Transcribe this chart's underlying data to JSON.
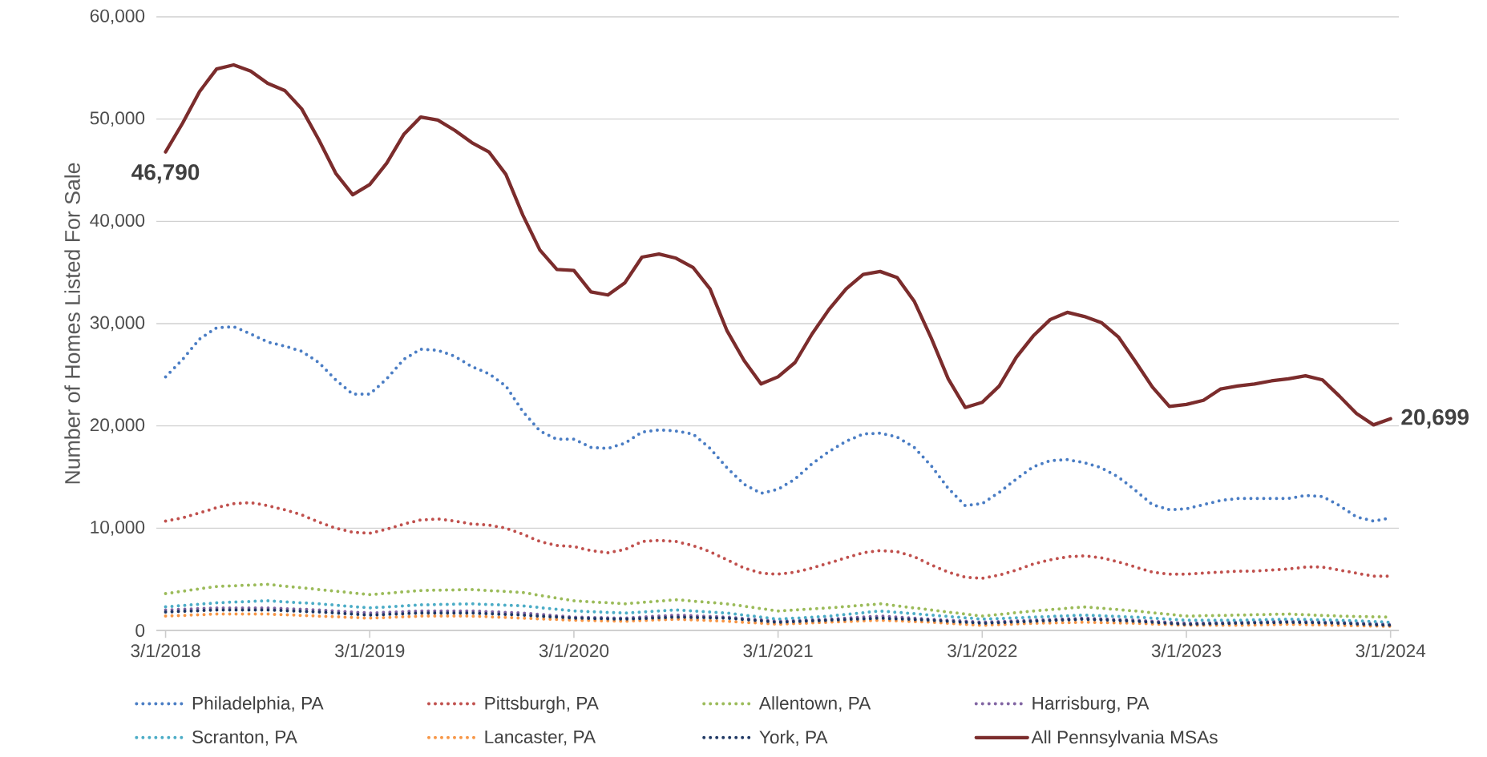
{
  "chart_data": {
    "type": "line",
    "ylabel": "Number of Homes Listed For Sale",
    "x": [
      "2018-03",
      "2018-04",
      "2018-05",
      "2018-06",
      "2018-07",
      "2018-08",
      "2018-09",
      "2018-10",
      "2018-11",
      "2018-12",
      "2019-01",
      "2019-02",
      "2019-03",
      "2019-04",
      "2019-05",
      "2019-06",
      "2019-07",
      "2019-08",
      "2019-09",
      "2019-10",
      "2019-11",
      "2019-12",
      "2020-01",
      "2020-02",
      "2020-03",
      "2020-04",
      "2020-05",
      "2020-06",
      "2020-07",
      "2020-08",
      "2020-09",
      "2020-10",
      "2020-11",
      "2020-12",
      "2021-01",
      "2021-02",
      "2021-03",
      "2021-04",
      "2021-05",
      "2021-06",
      "2021-07",
      "2021-08",
      "2021-09",
      "2021-10",
      "2021-11",
      "2021-12",
      "2022-01",
      "2022-02",
      "2022-03",
      "2022-04",
      "2022-05",
      "2022-06",
      "2022-07",
      "2022-08",
      "2022-09",
      "2022-10",
      "2022-11",
      "2022-12",
      "2023-01",
      "2023-02",
      "2023-03",
      "2023-04",
      "2023-05",
      "2023-06",
      "2023-07",
      "2023-08",
      "2023-09",
      "2023-10",
      "2023-11",
      "2023-12",
      "2024-01",
      "2024-02",
      "2024-03"
    ],
    "series": [
      {
        "name": "Philadelphia, PA",
        "color": "#4a7dc4",
        "line_style": "dotted",
        "values": [
          24800,
          26500,
          28500,
          29600,
          29700,
          29000,
          28200,
          27800,
          27300,
          26200,
          24500,
          23100,
          23100,
          24600,
          26500,
          27500,
          27400,
          26800,
          25800,
          25100,
          23900,
          21400,
          19500,
          18700,
          18700,
          17900,
          17800,
          18300,
          19400,
          19600,
          19500,
          19200,
          17800,
          15900,
          14300,
          13400,
          13800,
          14800,
          16300,
          17500,
          18500,
          19200,
          19300,
          18900,
          17900,
          16100,
          13900,
          12200,
          12400,
          13500,
          14800,
          16000,
          16600,
          16700,
          16400,
          15900,
          15000,
          13700,
          12300,
          11800,
          11900,
          12300,
          12700,
          12900,
          12900,
          12900,
          12900,
          13200,
          13100,
          12200,
          11100,
          10700,
          11000
        ]
      },
      {
        "name": "Pittsburgh, PA",
        "color": "#c0504d",
        "line_style": "dotted",
        "values": [
          10700,
          11000,
          11500,
          12000,
          12400,
          12500,
          12200,
          11800,
          11300,
          10600,
          10000,
          9600,
          9500,
          9900,
          10400,
          10800,
          10900,
          10700,
          10400,
          10300,
          10000,
          9400,
          8700,
          8300,
          8200,
          7800,
          7600,
          7900,
          8700,
          8800,
          8700,
          8300,
          7700,
          6900,
          6100,
          5600,
          5500,
          5700,
          6100,
          6600,
          7100,
          7600,
          7800,
          7700,
          7200,
          6400,
          5700,
          5200,
          5100,
          5400,
          5900,
          6500,
          6900,
          7200,
          7300,
          7100,
          6700,
          6200,
          5700,
          5500,
          5500,
          5600,
          5700,
          5800,
          5800,
          5900,
          6000,
          6200,
          6200,
          5900,
          5600,
          5300,
          5300
        ]
      },
      {
        "name": "Allentown, PA",
        "color": "#9bbb59",
        "line_style": "dotted",
        "x": [
          "2018-03",
          "2018-06",
          "2018-09",
          "2018-12",
          "2019-03",
          "2019-06",
          "2019-09",
          "2019-12",
          "2020-03",
          "2020-06",
          "2020-09",
          "2020-12",
          "2021-03",
          "2021-06",
          "2021-09",
          "2021-12",
          "2022-03",
          "2022-06",
          "2022-09",
          "2022-12",
          "2023-03",
          "2023-06",
          "2023-09",
          "2023-12",
          "2024-03"
        ],
        "values": [
          3600,
          4300,
          4500,
          4000,
          3500,
          3900,
          4000,
          3700,
          2900,
          2600,
          3000,
          2600,
          1900,
          2200,
          2600,
          2000,
          1400,
          1900,
          2300,
          1900,
          1400,
          1500,
          1600,
          1400,
          1300
        ]
      },
      {
        "name": "Harrisburg, PA",
        "color": "#8064a2",
        "line_style": "dotted",
        "x": [
          "2018-03",
          "2018-06",
          "2018-09",
          "2018-12",
          "2019-03",
          "2019-06",
          "2019-09",
          "2019-12",
          "2020-03",
          "2020-06",
          "2020-09",
          "2020-12",
          "2021-03",
          "2021-06",
          "2021-09",
          "2021-12",
          "2022-03",
          "2022-06",
          "2022-09",
          "2022-12",
          "2023-03",
          "2023-06",
          "2023-09",
          "2023-12",
          "2024-03"
        ],
        "values": [
          2000,
          2200,
          2200,
          2000,
          1700,
          1900,
          1900,
          1700,
          1300,
          1200,
          1500,
          1300,
          900,
          1100,
          1400,
          1100,
          800,
          1000,
          1200,
          1000,
          700,
          800,
          900,
          800,
          600
        ]
      },
      {
        "name": "Scranton, PA",
        "color": "#4bacc6",
        "line_style": "dotted",
        "x": [
          "2018-03",
          "2018-06",
          "2018-09",
          "2018-12",
          "2019-03",
          "2019-06",
          "2019-09",
          "2019-12",
          "2020-03",
          "2020-06",
          "2020-09",
          "2020-12",
          "2021-03",
          "2021-06",
          "2021-09",
          "2021-12",
          "2022-03",
          "2022-06",
          "2022-09",
          "2022-12",
          "2023-03",
          "2023-06",
          "2023-09",
          "2023-12",
          "2024-03"
        ],
        "values": [
          2300,
          2700,
          2900,
          2600,
          2200,
          2500,
          2600,
          2400,
          1900,
          1700,
          2000,
          1700,
          1100,
          1400,
          1900,
          1500,
          1100,
          1300,
          1500,
          1300,
          1000,
          1000,
          1100,
          1000,
          800
        ]
      },
      {
        "name": "Lancaster, PA",
        "color": "#f79646",
        "line_style": "dotted",
        "x": [
          "2018-03",
          "2018-06",
          "2018-09",
          "2018-12",
          "2019-03",
          "2019-06",
          "2019-09",
          "2019-12",
          "2020-03",
          "2020-06",
          "2020-09",
          "2020-12",
          "2021-03",
          "2021-06",
          "2021-09",
          "2021-12",
          "2022-03",
          "2022-06",
          "2022-09",
          "2022-12",
          "2023-03",
          "2023-06",
          "2023-09",
          "2023-12",
          "2024-03"
        ],
        "values": [
          1400,
          1600,
          1600,
          1400,
          1200,
          1400,
          1400,
          1200,
          1000,
          900,
          1100,
          900,
          600,
          800,
          1000,
          800,
          500,
          700,
          800,
          700,
          500,
          500,
          600,
          500,
          400
        ]
      },
      {
        "name": "York, PA",
        "color": "#1f3864",
        "line_style": "dotted",
        "x": [
          "2018-03",
          "2018-06",
          "2018-09",
          "2018-12",
          "2019-03",
          "2019-06",
          "2019-09",
          "2019-12",
          "2020-03",
          "2020-06",
          "2020-09",
          "2020-12",
          "2021-03",
          "2021-06",
          "2021-09",
          "2021-12",
          "2022-03",
          "2022-06",
          "2022-09",
          "2022-12",
          "2023-03",
          "2023-06",
          "2023-09",
          "2023-12",
          "2024-03"
        ],
        "values": [
          1800,
          2000,
          2000,
          1800,
          1500,
          1700,
          1700,
          1500,
          1200,
          1100,
          1300,
          1200,
          800,
          1000,
          1200,
          1000,
          700,
          900,
          1100,
          900,
          600,
          700,
          800,
          700,
          500
        ]
      },
      {
        "name": "All Pennsylvania MSAs",
        "color": "#7b2c2c",
        "line_style": "solid",
        "values": [
          46790,
          49600,
          52700,
          54900,
          55300,
          54700,
          53500,
          52800,
          51000,
          48000,
          44700,
          42600,
          43600,
          45700,
          48500,
          50200,
          49900,
          48900,
          47700,
          46800,
          44600,
          40600,
          37200,
          35300,
          35200,
          33100,
          32800,
          34000,
          36500,
          36800,
          36400,
          35500,
          33400,
          29300,
          26400,
          24100,
          24800,
          26200,
          29000,
          31400,
          33400,
          34800,
          35100,
          34500,
          32200,
          28600,
          24600,
          21800,
          22300,
          23900,
          26700,
          28800,
          30400,
          31100,
          30700,
          30100,
          28700,
          26300,
          23800,
          21900,
          22100,
          22500,
          23600,
          23900,
          24100,
          24400,
          24600,
          24900,
          24500,
          22900,
          21200,
          20100,
          20699
        ]
      }
    ],
    "annotations": [
      {
        "text": "46,790",
        "x": "2018-03",
        "y": 46790
      },
      {
        "text": "20,699",
        "x": "2024-03",
        "y": 20699
      }
    ],
    "xlim": [
      "2018-02-15",
      "2024-03-16"
    ],
    "xticks": [
      {
        "value": "2018-03-01",
        "label": "3/1/2018"
      },
      {
        "value": "2019-03-01",
        "label": "3/1/2019"
      },
      {
        "value": "2020-03-01",
        "label": "3/1/2020"
      },
      {
        "value": "2021-03-01",
        "label": "3/1/2021"
      },
      {
        "value": "2022-03-01",
        "label": "3/1/2022"
      },
      {
        "value": "2023-03-01",
        "label": "3/1/2023"
      },
      {
        "value": "2024-03-01",
        "label": "3/1/2024"
      }
    ],
    "ylim": [
      0,
      60000
    ],
    "yticks": [
      0,
      {
        "value": 10000,
        "label": "10,000"
      },
      {
        "value": 20000,
        "label": "20,000"
      },
      {
        "value": 30000,
        "label": "30,000"
      },
      {
        "value": 40000,
        "label": "40,000"
      },
      {
        "value": 50000,
        "label": "50,000"
      },
      {
        "value": 60000,
        "label": "60,000"
      }
    ],
    "grid": "y",
    "legend": "bottom",
    "marker": "none"
  }
}
